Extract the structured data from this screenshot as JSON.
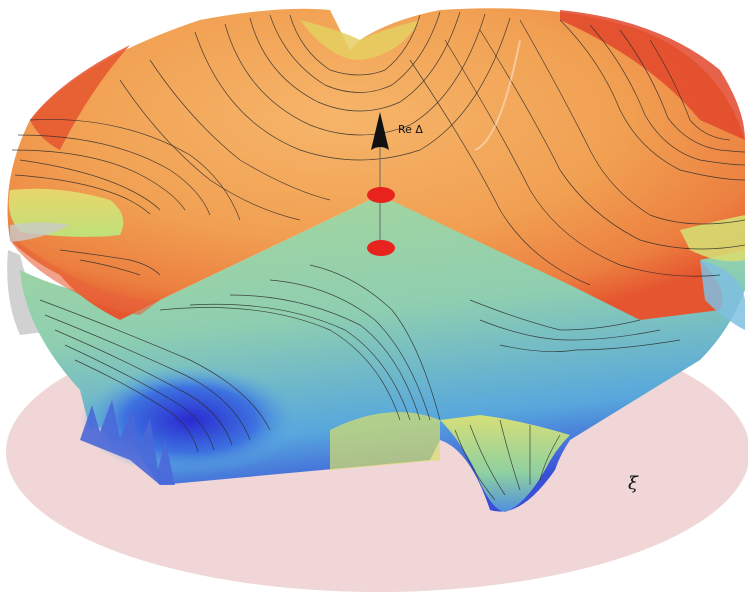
{
  "axis": {
    "label": "Re Δ"
  },
  "plane": {
    "label": "ξ"
  },
  "colors": {
    "base_plane": "#f0d6d6",
    "upper_sheet_warm": "#f0a55a",
    "upper_sheet_edge": "#e8623a",
    "lower_sheet_green": "#9ad39a",
    "lower_sheet_blue": "#2f3fd0",
    "marker": "#e8231e",
    "arrow": "#111111"
  },
  "markers": {
    "count": 2
  }
}
